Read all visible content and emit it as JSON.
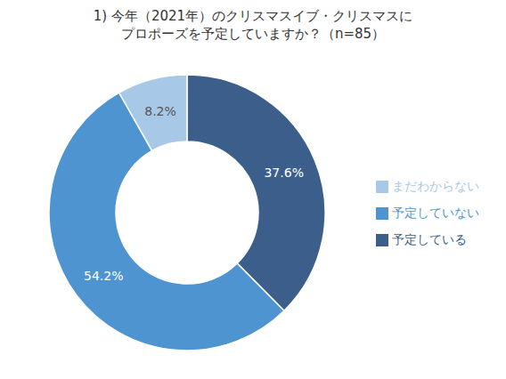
{
  "chart_data": {
    "type": "pie",
    "title": "1) 今年（2021年）のクリスマスイブ・クリスマスに",
    "subtitle": "プロポーズを予定していますか？（n=85）",
    "categories": [
      "予定している",
      "予定していない",
      "まだわからない"
    ],
    "values": [
      37.6,
      54.2,
      8.2
    ],
    "value_labels": [
      "37.6%",
      "54.2%",
      "8.2%"
    ],
    "colors": [
      "#3b5f8a",
      "#4d94d0",
      "#a8c8e8"
    ],
    "data_labels": true,
    "legend": "right"
  }
}
